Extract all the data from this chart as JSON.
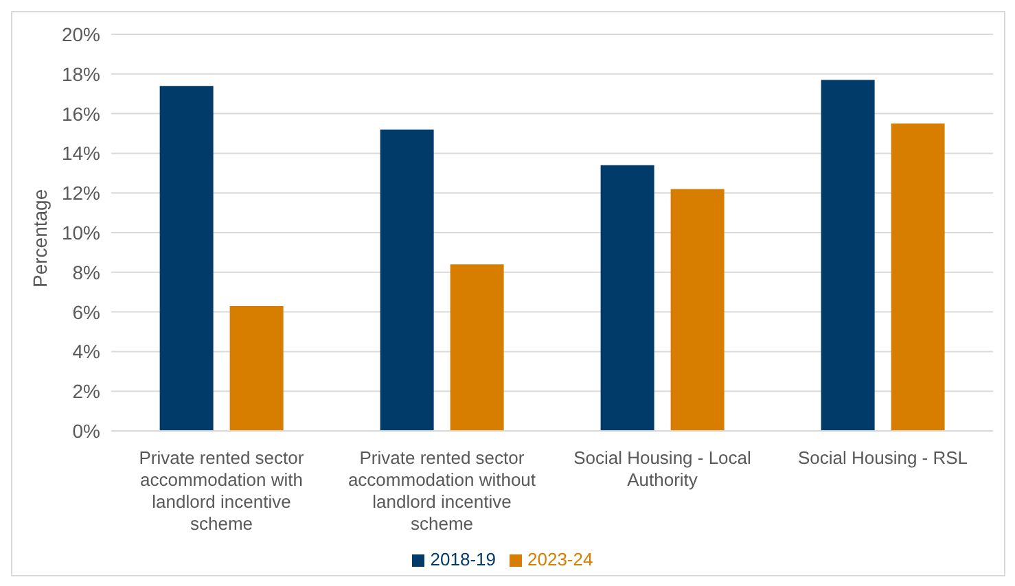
{
  "chart_data": {
    "type": "bar",
    "ylabel": "Percentage",
    "categories": [
      "Private rented sector accommodation with landlord incentive scheme",
      "Private rented sector accommodation without landlord incentive scheme",
      "Social Housing - Local Authority",
      "Social Housing - RSL"
    ],
    "series": [
      {
        "name": "2018-19",
        "color": "#003b6a",
        "values": [
          17.4,
          15.2,
          13.4,
          17.7
        ]
      },
      {
        "name": "2023-24",
        "color": "#d77e00",
        "values": [
          6.3,
          8.4,
          12.2,
          15.5
        ]
      }
    ],
    "ylim": [
      0,
      20
    ],
    "yticks": [
      {
        "value": 0,
        "label": "0%"
      },
      {
        "value": 2,
        "label": "2%"
      },
      {
        "value": 4,
        "label": "4%"
      },
      {
        "value": 6,
        "label": "6%"
      },
      {
        "value": 8,
        "label": "8%"
      },
      {
        "value": 10,
        "label": "10%"
      },
      {
        "value": 12,
        "label": "12%"
      },
      {
        "value": 14,
        "label": "14%"
      },
      {
        "value": 16,
        "label": "16%"
      },
      {
        "value": 18,
        "label": "18%"
      },
      {
        "value": 20,
        "label": "20%"
      }
    ],
    "grid": "y",
    "legend": "bottom"
  }
}
